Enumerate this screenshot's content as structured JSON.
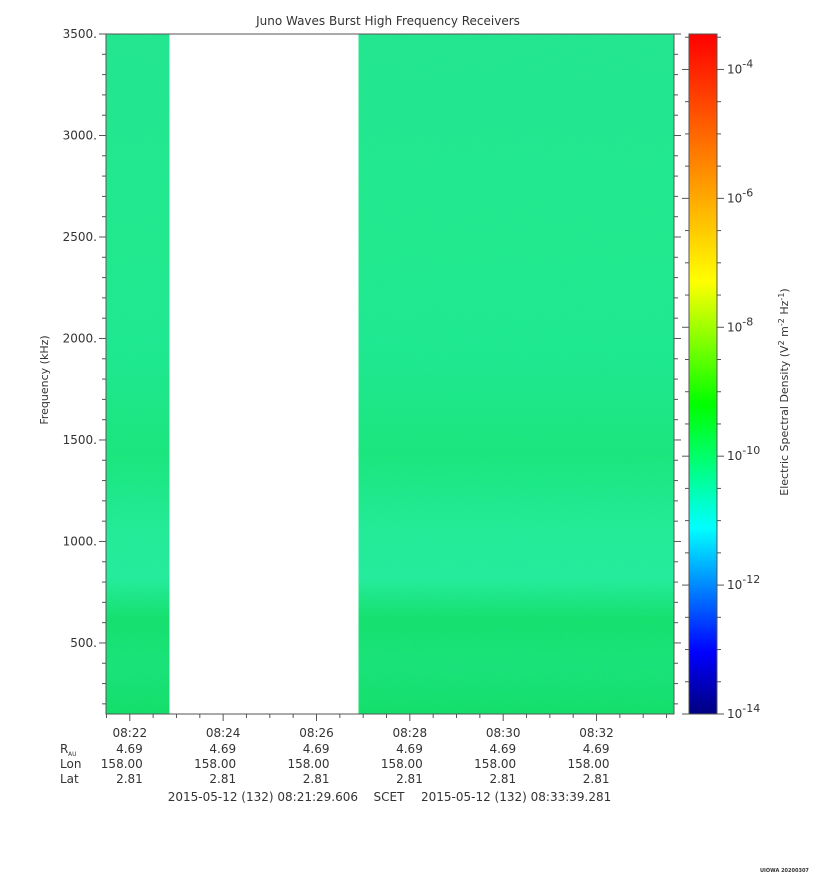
{
  "chart_data": {
    "type": "heatmap",
    "title": "Juno Waves Burst High Frequency Receivers",
    "ylabel": "Frequency (kHz)",
    "colorbar_label": "Electric Spectral Density (V",
    "colorbar_unit": {
      "base": "Electric Spectral Density (V",
      "sup1": "2",
      "mid1": " m",
      "sup2": "-2",
      "mid2": " Hz",
      "sup3": "-1",
      "tail": ")"
    },
    "ylim": [
      150,
      3500
    ],
    "yticks": [
      500,
      1000,
      1500,
      2000,
      2500,
      3000,
      3500
    ],
    "ytick_labels": [
      "500.",
      "1000.",
      "1500.",
      "2000.",
      "2500.",
      "3000.",
      "3500."
    ],
    "xlim_minutes": [
      21.49,
      33.66
    ],
    "xticks_minutes": [
      22,
      24,
      26,
      28,
      30,
      32
    ],
    "xtick_labels": [
      "08:22",
      "08:24",
      "08:26",
      "08:28",
      "08:30",
      "08:32"
    ],
    "data_gap_minutes": [
      22.85,
      26.9
    ],
    "colorbar_exponents": [
      -14,
      -12,
      -10,
      -8,
      -6,
      -4
    ],
    "colorbar_range_log": [
      -14,
      -3.45
    ],
    "colormap": [
      "#00007f",
      "#0000ff",
      "#007fff",
      "#00ffff",
      "#00ff7f",
      "#00ff00",
      "#7fff00",
      "#ffff00",
      "#ffbf00",
      "#ff7f00",
      "#ff3f00",
      "#ff0000"
    ],
    "spectrogram_color": "#1ee884",
    "ephemeris": [
      {
        "label": "R",
        "sub": "AU",
        "values": [
          "4.69",
          "4.69",
          "4.69",
          "4.69",
          "4.69",
          "4.69"
        ]
      },
      {
        "label": "Lon",
        "sub": "",
        "values": [
          "158.00",
          "158.00",
          "158.00",
          "158.00",
          "158.00",
          "158.00"
        ]
      },
      {
        "label": "Lat",
        "sub": "",
        "values": [
          "2.81",
          "2.81",
          "2.81",
          "2.81",
          "2.81",
          "2.81"
        ]
      }
    ],
    "time_range": {
      "start": "2015-05-12 (132) 08:21:29.606",
      "label": "SCET",
      "end": "2015-05-12 (132) 08:33:39.281"
    },
    "watermark": "UIOWA 20200307"
  }
}
